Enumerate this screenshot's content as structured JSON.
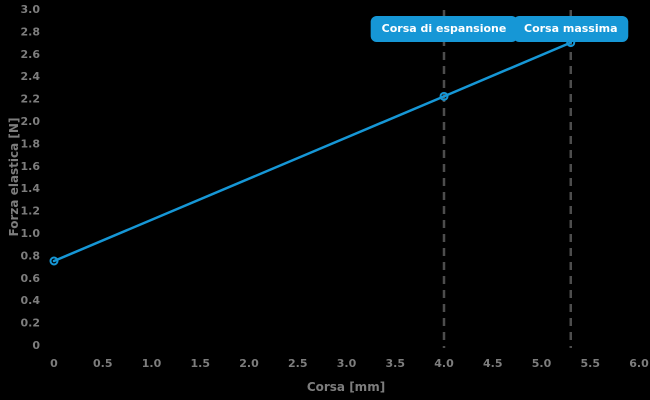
{
  "chart_data": {
    "type": "line",
    "title": "",
    "xlabel": "Corsa [mm]",
    "ylabel": "Forza elastica [N]",
    "xlim": [
      0,
      6.0
    ],
    "ylim": [
      0,
      3.0
    ],
    "grid": false,
    "background_color": "#000000",
    "axis_text_color": "#7d7d7d",
    "x_ticks": {
      "values": [
        0,
        0.5,
        1.0,
        1.5,
        2.0,
        2.5,
        3.0,
        3.5,
        4.0,
        4.5,
        5.0,
        5.5,
        6.0
      ],
      "labels": [
        "0",
        "0.5",
        "1.0",
        "1.5",
        "2.0",
        "2.5",
        "3.0",
        "3.5",
        "4.0",
        "4.5",
        "5.0",
        "5.5",
        "6.0"
      ]
    },
    "y_ticks": {
      "values": [
        0,
        0.2,
        0.4,
        0.6,
        0.8,
        1.0,
        1.2,
        1.4,
        1.6,
        1.8,
        2.0,
        2.2,
        2.4,
        2.6,
        2.8,
        3.0
      ],
      "labels": [
        "0",
        "0.2",
        "0.4",
        "0.6",
        "0.8",
        "1.0",
        "1.2",
        "1.4",
        "1.6",
        "1.8",
        "2.0",
        "2.2",
        "2.4",
        "2.6",
        "2.8",
        "3.0"
      ]
    },
    "series": [
      {
        "name": "Forza elastica",
        "color": "#1697d6",
        "marker": "open-circle",
        "points": [
          {
            "x": 0,
            "y": 0.75
          },
          {
            "x": 4.0,
            "y": 2.22
          },
          {
            "x": 5.3,
            "y": 2.7
          }
        ]
      }
    ],
    "annotations": [
      {
        "x": 4.0,
        "label": "Corsa di espansione",
        "line_style": "dashed",
        "line_color": "#4d4d4d",
        "badge_color": "#1697d6",
        "text_color": "#ffffff"
      },
      {
        "x": 5.3,
        "label": "Corsa massima",
        "line_style": "dashed",
        "line_color": "#4d4d4d",
        "badge_color": "#1697d6",
        "text_color": "#ffffff"
      }
    ]
  }
}
